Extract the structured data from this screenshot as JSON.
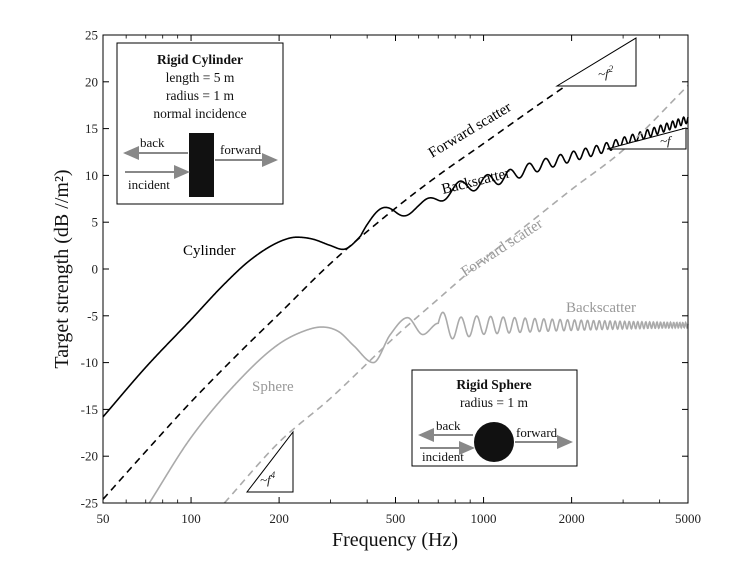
{
  "chart_data": {
    "type": "line",
    "title": "",
    "xlabel": "Frequency (Hz)",
    "ylabel": "Target strength (dB //m²)",
    "xscale": "log",
    "xlim": [
      50,
      5000
    ],
    "ylim": [
      -25,
      25
    ],
    "xticks": [
      50,
      100,
      200,
      500,
      1000,
      2000,
      5000
    ],
    "xtick_labels": [
      "50",
      "100",
      "200",
      "500",
      "1000",
      "2000",
      "5000"
    ],
    "yticks": [
      -25,
      -20,
      -15,
      -10,
      -5,
      0,
      5,
      10,
      15,
      20,
      25
    ],
    "ytick_labels": [
      "-25",
      "-20",
      "-15",
      "-10",
      "-5",
      "0",
      "5",
      "10",
      "15",
      "20",
      "25"
    ],
    "grid": false,
    "series": [
      {
        "name": "Forward scatter",
        "group": "Cylinder",
        "style": "dashed",
        "color": "#000000",
        "x": [
          50,
          70,
          100,
          150,
          200,
          300,
          500,
          700,
          1000,
          1500,
          2000,
          3000
        ],
        "y": [
          -24.6,
          -19.5,
          -14.2,
          -8.6,
          -4.8,
          0.6,
          6.5,
          10.0,
          13.4,
          17.3,
          20.0,
          23.8
        ]
      },
      {
        "name": "Backscatter",
        "group": "Cylinder",
        "style": "solid",
        "color": "#000000",
        "x": [
          50,
          70,
          100,
          130,
          160,
          200,
          230,
          260,
          300,
          330,
          400,
          500,
          600,
          700,
          800,
          1000,
          1200,
          1500,
          2000,
          2500,
          3000,
          4000,
          5000
        ],
        "y": [
          -15.8,
          -10.5,
          -5.4,
          -1.6,
          1.0,
          2.9,
          3.4,
          3.2,
          2.5,
          2.1,
          4.2,
          6.6,
          6.3,
          7.8,
          8.5,
          9.3,
          9.9,
          10.9,
          12.0,
          12.8,
          13.6,
          14.9,
          16.0
        ]
      },
      {
        "name": "Forward scatter",
        "group": "Sphere",
        "style": "dashed",
        "color": "#aaaaaa",
        "x": [
          130,
          200,
          300,
          500,
          700,
          1000,
          1500,
          2000,
          3000,
          5000
        ],
        "y": [
          -25.0,
          -18.5,
          -13.8,
          -7.2,
          -3.2,
          1.0,
          5.4,
          8.5,
          12.7,
          19.6
        ]
      },
      {
        "name": "Backscatter",
        "group": "Sphere",
        "style": "solid",
        "color": "#aaaaaa",
        "x": [
          72,
          100,
          150,
          200,
          250,
          280,
          320,
          360,
          420,
          480,
          550,
          620,
          700,
          800,
          1000,
          1500,
          2000,
          3000,
          5000
        ],
        "y": [
          -25.0,
          -18.0,
          -11.5,
          -8.0,
          -6.5,
          -6.2,
          -6.7,
          -8.2,
          -10.0,
          -7.0,
          -5.2,
          -7.0,
          -5.8,
          -6.3,
          -6.0,
          -6.0,
          -6.0,
          -6.0,
          -6.0
        ]
      }
    ],
    "annotations": {
      "cylinder_forward": "Forward scatter",
      "cylinder_back": "Backscatter",
      "cylinder_name": "Cylinder",
      "sphere_forward": "Forward scatter",
      "sphere_back": "Backscatter",
      "sphere_name": "Sphere"
    },
    "slope_markers": [
      {
        "label": "~f²",
        "base": "~f",
        "sup": "2"
      },
      {
        "label": "~f",
        "base": "~f",
        "sup": ""
      },
      {
        "label": "~f⁴",
        "base": "~f",
        "sup": "4"
      }
    ],
    "insets": {
      "cylinder": {
        "title": "Rigid Cylinder",
        "lines": [
          "length = 5 m",
          "radius = 1 m",
          "normal incidence"
        ],
        "back": "back",
        "forward": "forward",
        "incident": "incident"
      },
      "sphere": {
        "title": "Rigid Sphere",
        "lines": [
          "radius = 1 m"
        ],
        "back": "back",
        "forward": "forward",
        "incident": "incident"
      }
    }
  }
}
